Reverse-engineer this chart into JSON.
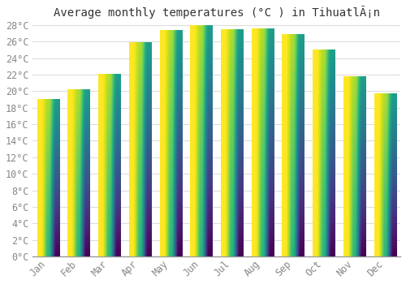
{
  "title": "Average monthly temperatures (°C ) in TihuatlÃ¡n",
  "months": [
    "Jan",
    "Feb",
    "Mar",
    "Apr",
    "May",
    "Jun",
    "Jul",
    "Aug",
    "Sep",
    "Oct",
    "Nov",
    "Dec"
  ],
  "values": [
    19.0,
    20.2,
    22.1,
    25.9,
    27.4,
    28.1,
    27.5,
    27.6,
    26.9,
    25.0,
    21.8,
    19.7
  ],
  "bar_color_top": "#FFE090",
  "bar_color_bottom": "#FFA500",
  "background_color": "#FFFFFF",
  "grid_color": "#DDDDDD",
  "ytick_step": 2,
  "ymin": 0,
  "ymax": 28,
  "title_fontsize": 10,
  "tick_fontsize": 8.5,
  "tick_color": "#888888",
  "font_family": "monospace"
}
